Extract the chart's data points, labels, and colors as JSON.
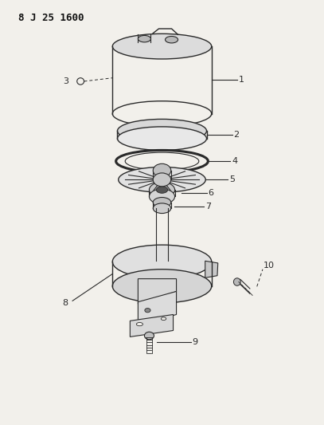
{
  "title": "8 J 25 1600",
  "background_color": "#f2f0eb",
  "line_color": "#2a2a2a",
  "label_color": "#111111",
  "figsize": [
    4.07,
    5.33
  ],
  "dpi": 100
}
